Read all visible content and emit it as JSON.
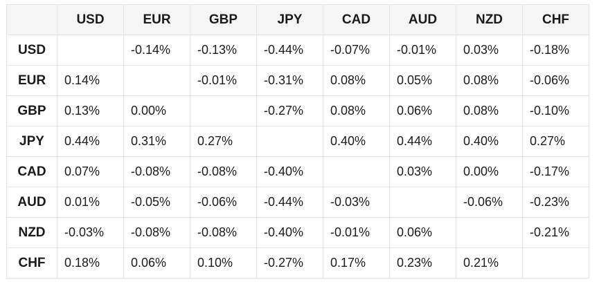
{
  "table": {
    "corner": "",
    "columns": [
      "USD",
      "EUR",
      "GBP",
      "JPY",
      "CAD",
      "AUD",
      "NZD",
      "CHF"
    ],
    "rows": [
      {
        "label": "USD",
        "cells": [
          "",
          "-0.14%",
          "-0.13%",
          "-0.44%",
          "-0.07%",
          "-0.01%",
          "0.03%",
          "-0.18%"
        ]
      },
      {
        "label": "EUR",
        "cells": [
          "0.14%",
          "",
          "-0.01%",
          "-0.31%",
          "0.08%",
          "0.05%",
          "0.08%",
          "-0.06%"
        ]
      },
      {
        "label": "GBP",
        "cells": [
          "0.13%",
          "0.00%",
          "",
          "-0.27%",
          "0.08%",
          "0.06%",
          "0.08%",
          "-0.10%"
        ]
      },
      {
        "label": "JPY",
        "cells": [
          "0.44%",
          "0.31%",
          "0.27%",
          "",
          "0.40%",
          "0.44%",
          "0.40%",
          "0.27%"
        ]
      },
      {
        "label": "CAD",
        "cells": [
          "0.07%",
          "-0.08%",
          "-0.08%",
          "-0.40%",
          "",
          "0.03%",
          "0.00%",
          "-0.17%"
        ]
      },
      {
        "label": "AUD",
        "cells": [
          "0.01%",
          "-0.05%",
          "-0.06%",
          "-0.44%",
          "-0.03%",
          "",
          "-0.06%",
          "-0.23%"
        ]
      },
      {
        "label": "NZD",
        "cells": [
          "-0.03%",
          "-0.08%",
          "-0.08%",
          "-0.40%",
          "-0.01%",
          "0.06%",
          "",
          "-0.21%"
        ]
      },
      {
        "label": "CHF",
        "cells": [
          "0.18%",
          "0.06%",
          "0.10%",
          "-0.27%",
          "0.17%",
          "0.23%",
          "0.21%",
          ""
        ]
      }
    ]
  }
}
